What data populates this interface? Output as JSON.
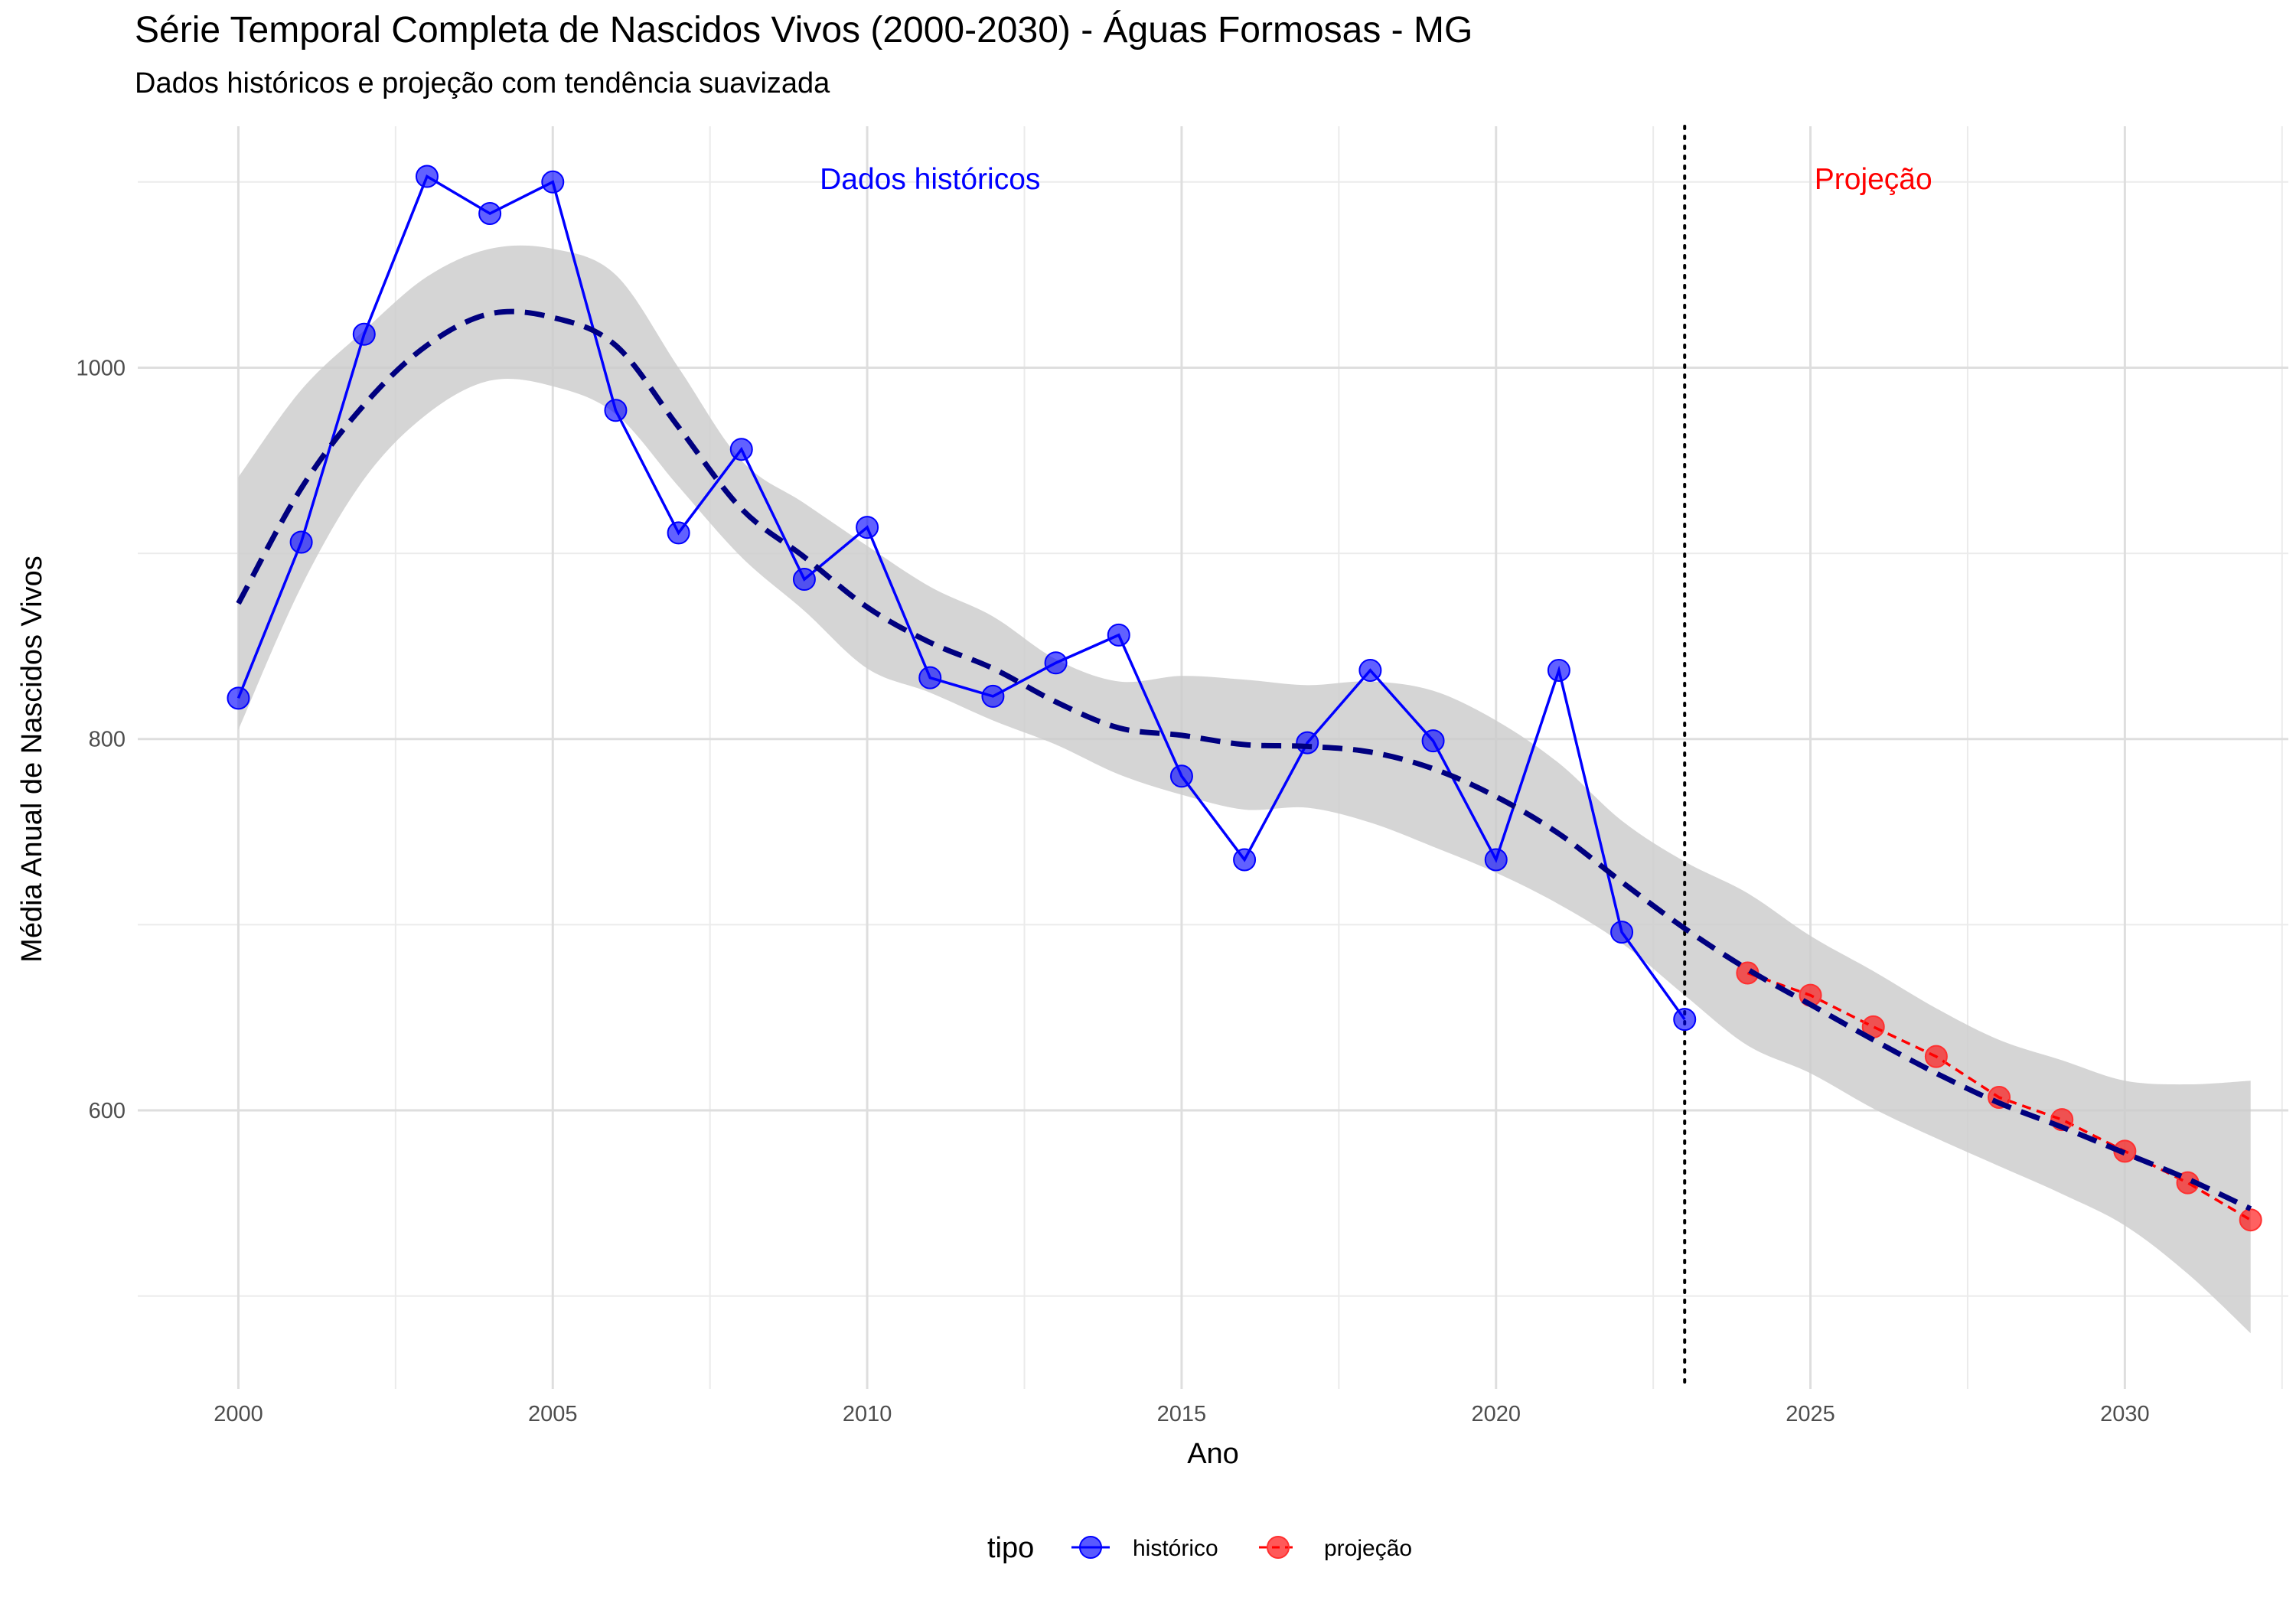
{
  "chart_data": {
    "type": "line",
    "title": "Série Temporal Completa de Nascidos Vivos (2000-2030) -  Águas Formosas - MG",
    "subtitle": "Dados históricos e projeção com tendência suavizada",
    "xlabel": "Ano",
    "ylabel": "Média Anual de Nascidos Vivos",
    "xlim": [
      1998.4,
      2032.6
    ],
    "ylim": [
      450,
      1130
    ],
    "x_ticks": [
      2000,
      2005,
      2010,
      2015,
      2020,
      2025,
      2030
    ],
    "y_ticks": [
      600,
      800,
      1000
    ],
    "grid": true,
    "legend": {
      "title": "tipo",
      "position": "bottom",
      "entries": [
        {
          "label": "histórico",
          "color": "#0000ff"
        },
        {
          "label": "projeção",
          "color": "#ff0000"
        }
      ]
    },
    "divider_x": 2023,
    "annotations": [
      {
        "text": "Dados históricos",
        "x": 2011,
        "y": 1102,
        "color": "#0000ff"
      },
      {
        "text": "Projeção",
        "x": 2026,
        "y": 1102,
        "color": "#ff0000"
      }
    ],
    "series": [
      {
        "name": "histórico",
        "color": "#0000ff",
        "x": [
          2000,
          2001,
          2002,
          2003,
          2004,
          2005,
          2006,
          2007,
          2008,
          2009,
          2010,
          2011,
          2012,
          2013,
          2014,
          2015,
          2016,
          2017,
          2018,
          2019,
          2020,
          2021,
          2022,
          2023
        ],
        "y": [
          822,
          906,
          1018,
          1103,
          1083,
          1100,
          977,
          911,
          956,
          886,
          914,
          833,
          823,
          841,
          856,
          780,
          735,
          798,
          837,
          799,
          735,
          837,
          696,
          649
        ]
      },
      {
        "name": "projeção",
        "color": "#ff0000",
        "x": [
          2024,
          2025,
          2026,
          2027,
          2028,
          2029,
          2030,
          2031,
          2032
        ],
        "y": [
          674,
          662,
          645,
          629,
          607,
          595,
          578,
          561,
          541
        ]
      }
    ],
    "trend": {
      "color": "#00007f",
      "x": [
        2000,
        2001,
        2002,
        2003,
        2004,
        2005,
        2006,
        2007,
        2008,
        2009,
        2010,
        2011,
        2012,
        2013,
        2014,
        2015,
        2016,
        2017,
        2018,
        2019,
        2020,
        2021,
        2022,
        2023,
        2024,
        2025,
        2026,
        2027,
        2028,
        2029,
        2030,
        2031,
        2032
      ],
      "y": [
        873,
        935,
        980,
        1012,
        1029,
        1027,
        1012,
        968,
        924,
        898,
        871,
        852,
        838,
        820,
        806,
        802,
        797,
        796,
        793,
        784,
        769,
        749,
        723,
        698,
        676,
        657,
        638,
        620,
        604,
        591,
        577,
        563,
        547
      ],
      "lower": [
        805,
        882,
        940,
        975,
        993,
        990,
        975,
        936,
        898,
        869,
        838,
        825,
        810,
        797,
        781,
        770,
        762,
        763,
        755,
        742,
        728,
        711,
        690,
        662,
        635,
        620,
        601,
        585,
        570,
        555,
        538,
        512,
        480
      ],
      "upper": [
        941,
        988,
        1020,
        1049,
        1064,
        1064,
        1050,
        1000,
        950,
        927,
        904,
        882,
        866,
        843,
        831,
        834,
        832,
        829,
        831,
        826,
        810,
        787,
        756,
        734,
        717,
        694,
        675,
        655,
        638,
        627,
        616,
        614,
        616
      ]
    }
  }
}
